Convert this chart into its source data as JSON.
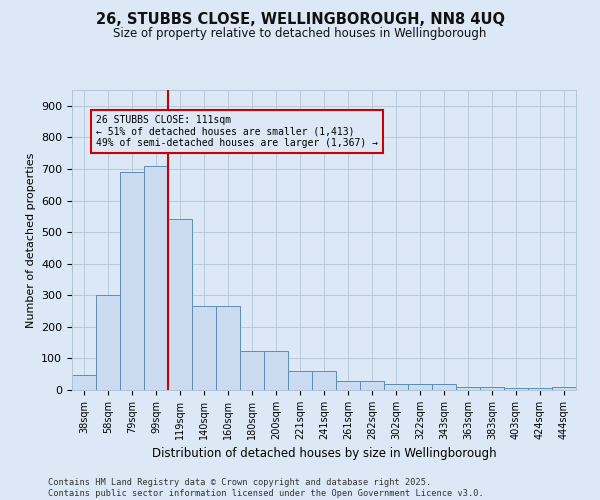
{
  "title_line1": "26, STUBBS CLOSE, WELLINGBOROUGH, NN8 4UQ",
  "title_line2": "Size of property relative to detached houses in Wellingborough",
  "xlabel": "Distribution of detached houses by size in Wellingborough",
  "ylabel": "Number of detached properties",
  "footnote": "Contains HM Land Registry data © Crown copyright and database right 2025.\nContains public sector information licensed under the Open Government Licence v3.0.",
  "categories": [
    "38sqm",
    "58sqm",
    "79sqm",
    "99sqm",
    "119sqm",
    "140sqm",
    "160sqm",
    "180sqm",
    "200sqm",
    "221sqm",
    "241sqm",
    "261sqm",
    "282sqm",
    "302sqm",
    "322sqm",
    "343sqm",
    "363sqm",
    "383sqm",
    "403sqm",
    "424sqm",
    "444sqm"
  ],
  "values": [
    48,
    300,
    690,
    710,
    540,
    265,
    265,
    125,
    125,
    60,
    60,
    28,
    28,
    18,
    18,
    20,
    10,
    10,
    5,
    5,
    8
  ],
  "bar_color": "#ccdcf0",
  "bar_edge_color": "#5b8db8",
  "grid_color": "#b0c4d8",
  "background_color": "#dce8f5",
  "annotation_box_text": "26 STUBBS CLOSE: 111sqm\n← 51% of detached houses are smaller (1,413)\n49% of semi-detached houses are larger (1,367) →",
  "annotation_box_color": "#cc0000",
  "vline_x_index": 3.5,
  "vline_color": "#cc0000",
  "ylim": [
    0,
    950
  ],
  "yticks": [
    0,
    100,
    200,
    300,
    400,
    500,
    600,
    700,
    800,
    900
  ]
}
